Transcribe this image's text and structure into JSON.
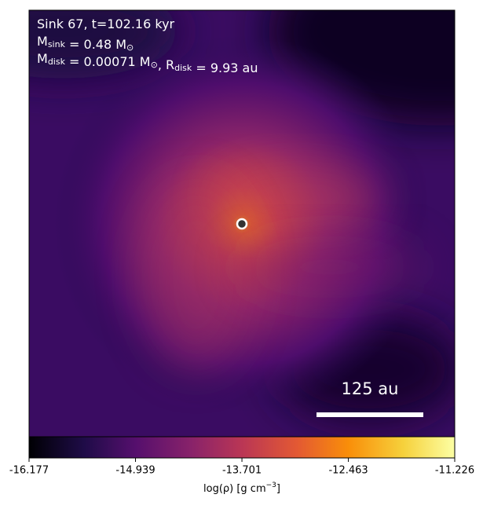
{
  "chart_data": {
    "type": "image",
    "annotations": [
      [
        {
          "text": "Sink 67, t=102.16 kyr"
        }
      ],
      [
        {
          "text": "M"
        },
        {
          "sub": "sink"
        },
        {
          "text": " = 0.48 M"
        },
        {
          "sub": "⊙"
        }
      ],
      [
        {
          "text": "M"
        },
        {
          "sub": "disk"
        },
        {
          "text": " = 0.00071 M"
        },
        {
          "sub": "⊙"
        },
        {
          "text": ", R"
        },
        {
          "sub": "disk"
        },
        {
          "text": " = 9.93 au"
        }
      ]
    ],
    "scale_bar_label": "125 au",
    "colorbar": {
      "label": "log(ρ) [g cm",
      "label_sup": "−3",
      "label_end": "]",
      "clim": [
        -16.177,
        -11.226
      ],
      "ticks": [
        -16.177,
        -14.939,
        -13.701,
        -12.463,
        -11.226
      ],
      "colormap": "inferno"
    }
  }
}
